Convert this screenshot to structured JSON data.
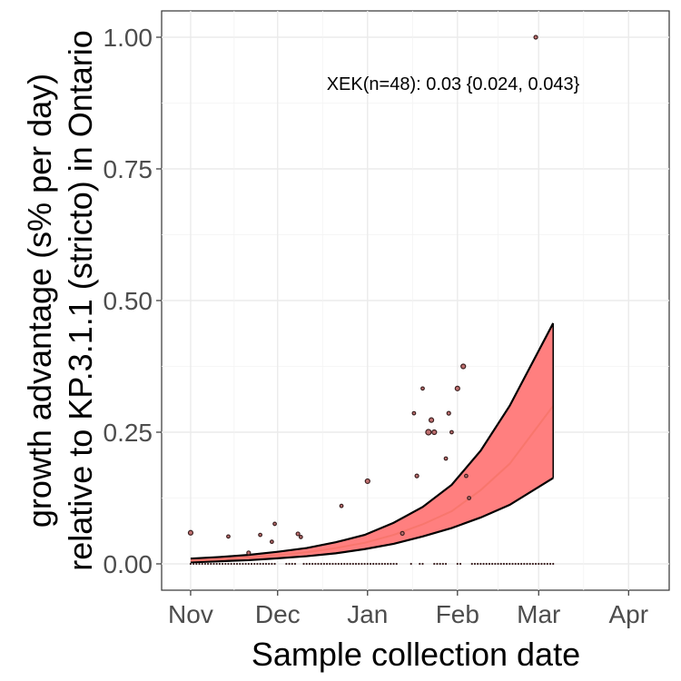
{
  "chart_data": {
    "type": "line",
    "xlabel": "Sample collection date",
    "ylabel_lines": [
      "growth advantage (s% per day)",
      "relative to KP.3.1.1 (stricto) in Ontario"
    ],
    "annotation": "XEK(n=48): 0.03 {0.024, 0.043}",
    "x_ticks": [
      {
        "date": "2024-11-01",
        "label": "Nov"
      },
      {
        "date": "2024-12-01",
        "label": "Dec"
      },
      {
        "date": "2025-01-01",
        "label": "Jan"
      },
      {
        "date": "2025-02-01",
        "label": "Feb"
      },
      {
        "date": "2025-03-01",
        "label": "Mar"
      },
      {
        "date": "2025-04-01",
        "label": "Apr"
      }
    ],
    "y_ticks": [
      {
        "value": 0.0,
        "label": "0.00"
      },
      {
        "value": 0.25,
        "label": "0.25"
      },
      {
        "value": 0.5,
        "label": "0.50"
      },
      {
        "value": 0.75,
        "label": "0.75"
      },
      {
        "value": 1.0,
        "label": "1.00"
      }
    ],
    "xlim": [
      "2024-10-22",
      "2025-04-15"
    ],
    "ylim": [
      -0.05,
      1.05
    ],
    "grid": true,
    "colors": {
      "fit": "#f8766d",
      "band": "#ff7f7f",
      "band_edge": "#000000",
      "points": "#3b2020"
    },
    "fit": {
      "x": [
        "2024-11-01",
        "2024-11-11",
        "2024-11-21",
        "2024-12-01",
        "2024-12-11",
        "2024-12-21",
        "2024-12-31",
        "2025-01-10",
        "2025-01-20",
        "2025-01-30",
        "2025-02-09",
        "2025-02-19",
        "2025-03-06"
      ],
      "y": [
        0.006,
        0.0085,
        0.012,
        0.0165,
        0.022,
        0.03,
        0.04,
        0.055,
        0.075,
        0.1,
        0.14,
        0.19,
        0.3
      ],
      "lower": [
        0.003,
        0.005,
        0.007,
        0.0105,
        0.0145,
        0.02,
        0.028,
        0.038,
        0.052,
        0.068,
        0.088,
        0.112,
        0.163
      ],
      "upper": [
        0.01,
        0.013,
        0.017,
        0.023,
        0.03,
        0.041,
        0.055,
        0.078,
        0.108,
        0.15,
        0.215,
        0.3,
        0.457
      ]
    },
    "points": [
      {
        "x": "2024-11-01",
        "y": 0.059,
        "size": 2.5
      },
      {
        "x": "2024-11-14",
        "y": 0.052,
        "size": 1.8
      },
      {
        "x": "2024-11-21",
        "y": 0.021,
        "size": 2.0
      },
      {
        "x": "2024-11-25",
        "y": 0.055,
        "size": 1.8
      },
      {
        "x": "2024-11-29",
        "y": 0.042,
        "size": 1.8
      },
      {
        "x": "2024-11-30",
        "y": 0.076,
        "size": 1.8
      },
      {
        "x": "2024-12-08",
        "y": 0.057,
        "size": 2.0
      },
      {
        "x": "2024-12-09",
        "y": 0.051,
        "size": 1.8
      },
      {
        "x": "2024-12-23",
        "y": 0.11,
        "size": 1.8
      },
      {
        "x": "2025-01-01",
        "y": 0.157,
        "size": 2.5
      },
      {
        "x": "2025-01-13",
        "y": 0.058,
        "size": 2.0
      },
      {
        "x": "2025-01-17",
        "y": 0.286,
        "size": 1.8
      },
      {
        "x": "2025-01-18",
        "y": 0.167,
        "size": 2.0
      },
      {
        "x": "2025-01-20",
        "y": 0.333,
        "size": 1.8
      },
      {
        "x": "2025-01-22",
        "y": 0.25,
        "size": 3.0
      },
      {
        "x": "2025-01-23",
        "y": 0.273,
        "size": 2.5
      },
      {
        "x": "2025-01-24",
        "y": 0.25,
        "size": 2.5
      },
      {
        "x": "2025-01-28",
        "y": 0.2,
        "size": 1.8
      },
      {
        "x": "2025-01-29",
        "y": 0.286,
        "size": 2.0
      },
      {
        "x": "2025-01-30",
        "y": 0.25,
        "size": 1.8
      },
      {
        "x": "2025-02-01",
        "y": 0.333,
        "size": 2.5
      },
      {
        "x": "2025-02-03",
        "y": 0.375,
        "size": 2.5
      },
      {
        "x": "2025-02-04",
        "y": 0.167,
        "size": 1.8
      },
      {
        "x": "2025-02-05",
        "y": 0.125,
        "size": 1.8
      },
      {
        "x": "2025-02-28",
        "y": 1.0,
        "size": 2.0
      }
    ],
    "zero_runs": [
      {
        "start": "2024-11-01",
        "end": "2024-11-30"
      },
      {
        "start": "2024-12-04",
        "end": "2024-12-07"
      },
      {
        "start": "2024-12-10",
        "end": "2025-01-11"
      },
      {
        "start": "2025-01-16",
        "end": "2025-01-16"
      },
      {
        "start": "2025-01-19",
        "end": "2025-01-20"
      },
      {
        "start": "2025-01-24",
        "end": "2025-01-28"
      },
      {
        "start": "2025-02-01",
        "end": "2025-02-02"
      },
      {
        "start": "2025-02-06",
        "end": "2025-03-06"
      }
    ]
  }
}
